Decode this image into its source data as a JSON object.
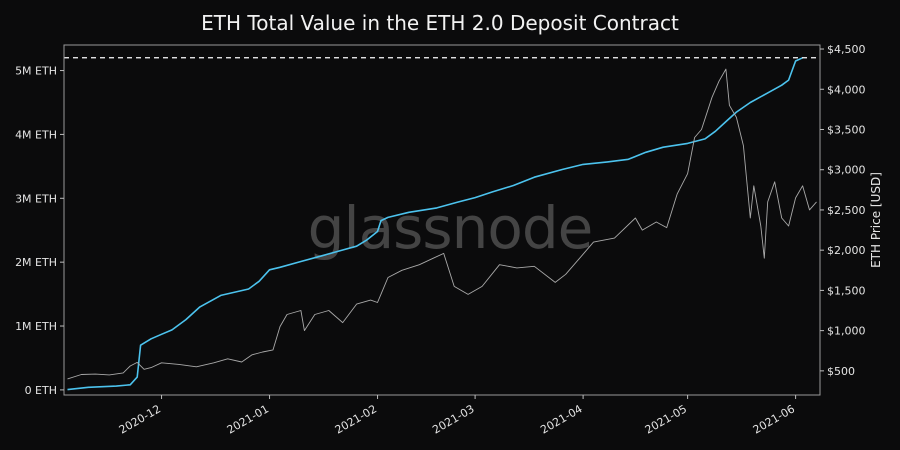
{
  "chart_data": {
    "type": "line",
    "title": "ETH Total Value in the ETH 2.0 Deposit Contract",
    "watermark": "glassnode",
    "ylabel_right": "ETH Price [USD]",
    "ylabel_left": "",
    "xlabel": "",
    "grid": false,
    "x_ticks": [
      "2020-12",
      "2021-01",
      "2021-02",
      "2021-03",
      "2021-04",
      "2021-05",
      "2021-06"
    ],
    "x_tick_dates": [
      "2020-12-01",
      "2021-01-01",
      "2021-02-01",
      "2021-03-01",
      "2021-04-01",
      "2021-05-01",
      "2021-06-01"
    ],
    "xlim": [
      "2020-11-03",
      "2021-06-08"
    ],
    "y_left_ticks": [
      "0 ETH",
      "1M ETH",
      "2M ETH",
      "3M ETH",
      "4M ETH",
      "5M ETH"
    ],
    "y_left_tick_values": [
      0,
      1000000,
      2000000,
      3000000,
      4000000,
      5000000
    ],
    "ylim_left": [
      -80000,
      5400000
    ],
    "y_right_ticks": [
      "$500",
      "$1,000",
      "$1,500",
      "$2,000",
      "$2,500",
      "$3,000",
      "$3,500",
      "$4,000",
      "$4,500"
    ],
    "y_right_tick_values": [
      500,
      1000,
      1500,
      2000,
      2500,
      3000,
      3500,
      4000,
      4500
    ],
    "ylim_right": [
      200,
      4550
    ],
    "reference_line": {
      "value": 5200000,
      "style": "dashed",
      "color": "#ffffff"
    },
    "series": [
      {
        "axis": "left",
        "color": "#4cc3ee",
        "points": [
          [
            "2020-11-04",
            5000
          ],
          [
            "2020-11-10",
            40000
          ],
          [
            "2020-11-18",
            60000
          ],
          [
            "2020-11-22",
            80000
          ],
          [
            "2020-11-24",
            200000
          ],
          [
            "2020-11-25",
            700000
          ],
          [
            "2020-11-28",
            800000
          ],
          [
            "2020-12-01",
            870000
          ],
          [
            "2020-12-04",
            940000
          ],
          [
            "2020-12-08",
            1100000
          ],
          [
            "2020-12-12",
            1300000
          ],
          [
            "2020-12-18",
            1480000
          ],
          [
            "2020-12-26",
            1580000
          ],
          [
            "2020-12-29",
            1700000
          ],
          [
            "2021-01-01",
            1880000
          ],
          [
            "2021-01-04",
            1920000
          ],
          [
            "2021-01-10",
            2010000
          ],
          [
            "2021-01-16",
            2100000
          ],
          [
            "2021-01-22",
            2190000
          ],
          [
            "2021-01-26",
            2250000
          ],
          [
            "2021-01-29",
            2350000
          ],
          [
            "2021-02-01",
            2480000
          ],
          [
            "2021-02-02",
            2650000
          ],
          [
            "2021-02-04",
            2700000
          ],
          [
            "2021-02-10",
            2780000
          ],
          [
            "2021-02-18",
            2850000
          ],
          [
            "2021-02-24",
            2940000
          ],
          [
            "2021-03-01",
            3010000
          ],
          [
            "2021-03-06",
            3100000
          ],
          [
            "2021-03-12",
            3200000
          ],
          [
            "2021-03-18",
            3330000
          ],
          [
            "2021-03-26",
            3450000
          ],
          [
            "2021-04-01",
            3530000
          ],
          [
            "2021-04-08",
            3570000
          ],
          [
            "2021-04-14",
            3610000
          ],
          [
            "2021-04-19",
            3720000
          ],
          [
            "2021-04-24",
            3800000
          ],
          [
            "2021-05-01",
            3860000
          ],
          [
            "2021-05-06",
            3930000
          ],
          [
            "2021-05-09",
            4050000
          ],
          [
            "2021-05-12",
            4200000
          ],
          [
            "2021-05-15",
            4350000
          ],
          [
            "2021-05-19",
            4500000
          ],
          [
            "2021-05-24",
            4650000
          ],
          [
            "2021-05-28",
            4770000
          ],
          [
            "2021-05-30",
            4850000
          ],
          [
            "2021-05-31",
            5000000
          ],
          [
            "2021-06-01",
            5150000
          ],
          [
            "2021-06-03",
            5200000
          ]
        ]
      },
      {
        "axis": "right",
        "color": "#a9a9a9",
        "points": [
          [
            "2020-11-04",
            400
          ],
          [
            "2020-11-08",
            455
          ],
          [
            "2020-11-12",
            460
          ],
          [
            "2020-11-16",
            450
          ],
          [
            "2020-11-20",
            475
          ],
          [
            "2020-11-22",
            560
          ],
          [
            "2020-11-24",
            605
          ],
          [
            "2020-11-26",
            520
          ],
          [
            "2020-11-28",
            540
          ],
          [
            "2020-12-01",
            600
          ],
          [
            "2020-12-06",
            580
          ],
          [
            "2020-12-11",
            550
          ],
          [
            "2020-12-16",
            600
          ],
          [
            "2020-12-20",
            650
          ],
          [
            "2020-12-24",
            610
          ],
          [
            "2020-12-27",
            700
          ],
          [
            "2020-12-30",
            735
          ],
          [
            "2021-01-02",
            760
          ],
          [
            "2021-01-04",
            1050
          ],
          [
            "2021-01-06",
            1200
          ],
          [
            "2021-01-10",
            1250
          ],
          [
            "2021-01-11",
            1000
          ],
          [
            "2021-01-14",
            1200
          ],
          [
            "2021-01-18",
            1250
          ],
          [
            "2021-01-22",
            1100
          ],
          [
            "2021-01-26",
            1330
          ],
          [
            "2021-01-30",
            1380
          ],
          [
            "2021-02-01",
            1350
          ],
          [
            "2021-02-04",
            1660
          ],
          [
            "2021-02-08",
            1750
          ],
          [
            "2021-02-13",
            1820
          ],
          [
            "2021-02-17",
            1900
          ],
          [
            "2021-02-20",
            1960
          ],
          [
            "2021-02-23",
            1550
          ],
          [
            "2021-02-27",
            1450
          ],
          [
            "2021-03-03",
            1550
          ],
          [
            "2021-03-08",
            1820
          ],
          [
            "2021-03-13",
            1780
          ],
          [
            "2021-03-18",
            1800
          ],
          [
            "2021-03-24",
            1600
          ],
          [
            "2021-03-27",
            1700
          ],
          [
            "2021-04-01",
            1950
          ],
          [
            "2021-04-04",
            2100
          ],
          [
            "2021-04-10",
            2150
          ],
          [
            "2021-04-16",
            2400
          ],
          [
            "2021-04-18",
            2250
          ],
          [
            "2021-04-22",
            2350
          ],
          [
            "2021-04-25",
            2280
          ],
          [
            "2021-04-28",
            2700
          ],
          [
            "2021-05-01",
            2950
          ],
          [
            "2021-05-03",
            3400
          ],
          [
            "2021-05-05",
            3500
          ],
          [
            "2021-05-08",
            3900
          ],
          [
            "2021-05-10",
            4100
          ],
          [
            "2021-05-12",
            4250
          ],
          [
            "2021-05-13",
            3800
          ],
          [
            "2021-05-15",
            3650
          ],
          [
            "2021-05-17",
            3300
          ],
          [
            "2021-05-19",
            2400
          ],
          [
            "2021-05-20",
            2800
          ],
          [
            "2021-05-22",
            2300
          ],
          [
            "2021-05-23",
            1900
          ],
          [
            "2021-05-24",
            2600
          ],
          [
            "2021-05-26",
            2850
          ],
          [
            "2021-05-28",
            2400
          ],
          [
            "2021-05-30",
            2300
          ],
          [
            "2021-06-01",
            2650
          ],
          [
            "2021-06-03",
            2800
          ],
          [
            "2021-06-05",
            2500
          ],
          [
            "2021-06-07",
            2600
          ]
        ]
      }
    ]
  }
}
